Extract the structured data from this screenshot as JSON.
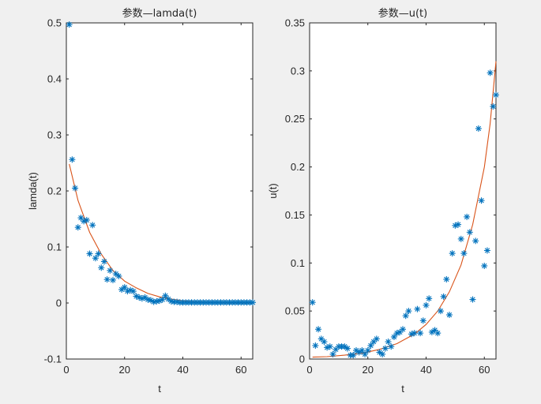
{
  "chart_data": [
    {
      "type": "scatter",
      "title": "参数—lamda(t)",
      "xlabel": "t",
      "ylabel": "lamda(t)",
      "xlim": [
        0,
        64
      ],
      "ylim": [
        -0.1,
        0.5
      ],
      "xticks": [
        0,
        20,
        40,
        60
      ],
      "xtick_labels": [
        "0",
        "20",
        "40",
        "60"
      ],
      "yticks": [
        -0.1,
        0,
        0.1,
        0.2,
        0.3,
        0.4,
        0.5
      ],
      "ytick_labels": [
        "-0.1",
        "0",
        "0.1",
        "0.2",
        "0.3",
        "0.4",
        "0.5"
      ],
      "grid": false,
      "marker_color": "#0072bd",
      "line_color": "#d95319",
      "points": [
        [
          1,
          0.497
        ],
        [
          2,
          0.256
        ],
        [
          3,
          0.205
        ],
        [
          4,
          0.135
        ],
        [
          5,
          0.152
        ],
        [
          6,
          0.146
        ],
        [
          7,
          0.148
        ],
        [
          8,
          0.088
        ],
        [
          9,
          0.139
        ],
        [
          10,
          0.08
        ],
        [
          11,
          0.088
        ],
        [
          12,
          0.063
        ],
        [
          13,
          0.074
        ],
        [
          14,
          0.042
        ],
        [
          15,
          0.058
        ],
        [
          16,
          0.041
        ],
        [
          17,
          0.052
        ],
        [
          18,
          0.048
        ],
        [
          19,
          0.024
        ],
        [
          20,
          0.028
        ],
        [
          21,
          0.021
        ],
        [
          22,
          0.023
        ],
        [
          23,
          0.021
        ],
        [
          24,
          0.012
        ],
        [
          25,
          0.01
        ],
        [
          26,
          0.008
        ],
        [
          27,
          0.01
        ],
        [
          28,
          0.006
        ],
        [
          29,
          0.005
        ],
        [
          30,
          0.002
        ],
        [
          31,
          0.003
        ],
        [
          32,
          0.004
        ],
        [
          33,
          0.006
        ],
        [
          34,
          0.013
        ],
        [
          35,
          0.007
        ],
        [
          36,
          0.003
        ],
        [
          37,
          0.002
        ],
        [
          38,
          0.002
        ],
        [
          39,
          0.001
        ],
        [
          40,
          0.001
        ],
        [
          41,
          0.001
        ],
        [
          42,
          0.001
        ],
        [
          43,
          0.001
        ],
        [
          44,
          0.001
        ],
        [
          45,
          0.001
        ],
        [
          46,
          0.001
        ],
        [
          47,
          0.001
        ],
        [
          48,
          0.001
        ],
        [
          49,
          0.001
        ],
        [
          50,
          0.001
        ],
        [
          51,
          0.001
        ],
        [
          52,
          0.001
        ],
        [
          53,
          0.001
        ],
        [
          54,
          0.001
        ],
        [
          55,
          0.001
        ],
        [
          56,
          0.001
        ],
        [
          57,
          0.001
        ],
        [
          58,
          0.001
        ],
        [
          59,
          0.001
        ],
        [
          60,
          0.001
        ],
        [
          61,
          0.001
        ],
        [
          62,
          0.001
        ],
        [
          63,
          0.001
        ],
        [
          64,
          0.001
        ]
      ],
      "fit_curve": [
        [
          1,
          0.248
        ],
        [
          4,
          0.183
        ],
        [
          8,
          0.126
        ],
        [
          12,
          0.087
        ],
        [
          16,
          0.058
        ],
        [
          20,
          0.039
        ],
        [
          24,
          0.027
        ],
        [
          28,
          0.017
        ],
        [
          32,
          0.011
        ],
        [
          36,
          0.007
        ],
        [
          40,
          0.004
        ],
        [
          44,
          0.002
        ],
        [
          48,
          0.001
        ],
        [
          52,
          0.0005
        ],
        [
          56,
          0.0003
        ],
        [
          60,
          0.0001
        ],
        [
          64,
          0.0001
        ]
      ]
    },
    {
      "type": "scatter",
      "title": "参数—u(t)",
      "xlabel": "t",
      "ylabel": "u(t)",
      "xlim": [
        0,
        64
      ],
      "ylim": [
        0,
        0.35
      ],
      "xticks": [
        0,
        20,
        40,
        60
      ],
      "xtick_labels": [
        "0",
        "20",
        "40",
        "60"
      ],
      "yticks": [
        0,
        0.05,
        0.1,
        0.15,
        0.2,
        0.25,
        0.3,
        0.35
      ],
      "ytick_labels": [
        "0",
        "0.05",
        "0.1",
        "0.15",
        "0.2",
        "0.25",
        "0.3",
        "0.35"
      ],
      "grid": false,
      "marker_color": "#0072bd",
      "line_color": "#d95319",
      "points": [
        [
          1,
          0.059
        ],
        [
          2,
          0.014
        ],
        [
          3,
          0.031
        ],
        [
          4,
          0.021
        ],
        [
          5,
          0.018
        ],
        [
          6,
          0.012
        ],
        [
          7,
          0.013
        ],
        [
          8,
          0.005
        ],
        [
          9,
          0.01
        ],
        [
          10,
          0.013
        ],
        [
          11,
          0.013
        ],
        [
          12,
          0.013
        ],
        [
          13,
          0.011
        ],
        [
          14,
          0.004
        ],
        [
          15,
          0.004
        ],
        [
          16,
          0.009
        ],
        [
          17,
          0.007
        ],
        [
          18,
          0.009
        ],
        [
          19,
          0.005
        ],
        [
          20,
          0.009
        ],
        [
          21,
          0.014
        ],
        [
          22,
          0.018
        ],
        [
          23,
          0.021
        ],
        [
          24,
          0.007
        ],
        [
          25,
          0.005
        ],
        [
          26,
          0.011
        ],
        [
          27,
          0.018
        ],
        [
          28,
          0.013
        ],
        [
          29,
          0.023
        ],
        [
          30,
          0.027
        ],
        [
          31,
          0.028
        ],
        [
          32,
          0.031
        ],
        [
          33,
          0.045
        ],
        [
          34,
          0.05
        ],
        [
          35,
          0.026
        ],
        [
          36,
          0.027
        ],
        [
          37,
          0.052
        ],
        [
          38,
          0.027
        ],
        [
          39,
          0.04
        ],
        [
          40,
          0.056
        ],
        [
          41,
          0.063
        ],
        [
          42,
          0.028
        ],
        [
          43,
          0.03
        ],
        [
          44,
          0.027
        ],
        [
          45,
          0.05
        ],
        [
          46,
          0.065
        ],
        [
          47,
          0.083
        ],
        [
          48,
          0.046
        ],
        [
          49,
          0.11
        ],
        [
          50,
          0.139
        ],
        [
          51,
          0.14
        ],
        [
          52,
          0.125
        ],
        [
          53,
          0.11
        ],
        [
          54,
          0.148
        ],
        [
          55,
          0.132
        ],
        [
          56,
          0.062
        ],
        [
          57,
          0.123
        ],
        [
          58,
          0.24
        ],
        [
          59,
          0.165
        ],
        [
          60,
          0.097
        ],
        [
          61,
          0.113
        ],
        [
          62,
          0.298
        ],
        [
          63,
          0.263
        ],
        [
          64,
          0.275
        ]
      ],
      "fit_curve": [
        [
          1,
          0.002
        ],
        [
          6,
          0.0025
        ],
        [
          12,
          0.004
        ],
        [
          18,
          0.006
        ],
        [
          24,
          0.01
        ],
        [
          30,
          0.016
        ],
        [
          36,
          0.026
        ],
        [
          40,
          0.036
        ],
        [
          44,
          0.05
        ],
        [
          48,
          0.07
        ],
        [
          52,
          0.098
        ],
        [
          56,
          0.14
        ],
        [
          60,
          0.2
        ],
        [
          62,
          0.245
        ],
        [
          64,
          0.31
        ]
      ]
    }
  ]
}
